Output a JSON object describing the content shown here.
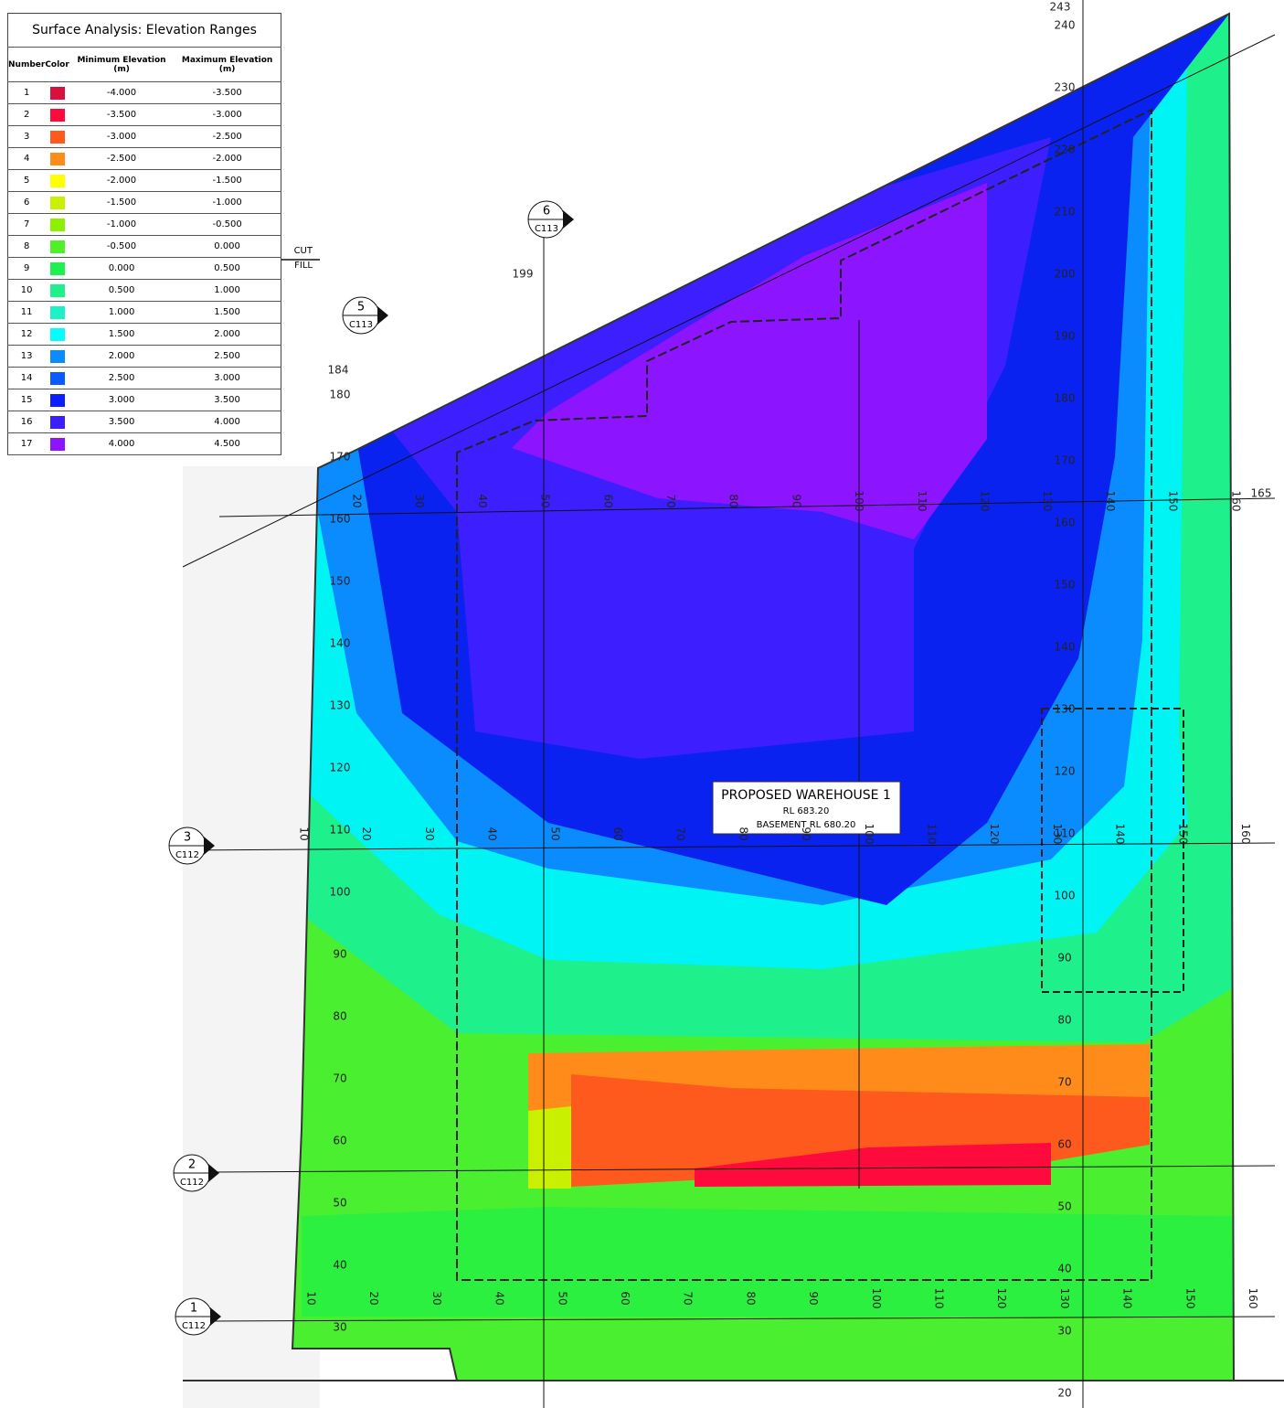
{
  "legend": {
    "title": "Surface Analysis: Elevation Ranges",
    "headers": [
      "Number",
      "Color",
      "Minimum Elevation (m)",
      "Maximum Elevation (m)"
    ],
    "rows": [
      {
        "number": "1",
        "color": "#d8103c",
        "min": "-4.000",
        "max": "-3.500"
      },
      {
        "number": "2",
        "color": "#ff0a3c",
        "min": "-3.500",
        "max": "-3.000"
      },
      {
        "number": "3",
        "color": "#ff5a1e",
        "min": "-3.000",
        "max": "-2.500"
      },
      {
        "number": "4",
        "color": "#ff8c1a",
        "min": "-2.500",
        "max": "-2.000"
      },
      {
        "number": "5",
        "color": "#ffff00",
        "min": "-2.000",
        "max": "-1.500"
      },
      {
        "number": "6",
        "color": "#c8f000",
        "min": "-1.500",
        "max": "-1.000"
      },
      {
        "number": "7",
        "color": "#8cf000",
        "min": "-1.000",
        "max": "-0.500"
      },
      {
        "number": "8",
        "color": "#50f028",
        "min": "-0.500",
        "max": "0.000"
      },
      {
        "number": "9",
        "color": "#1ef050",
        "min": "0.000",
        "max": "0.500"
      },
      {
        "number": "10",
        "color": "#1ef08c",
        "min": "0.500",
        "max": "1.000"
      },
      {
        "number": "11",
        "color": "#1ef0c8",
        "min": "1.000",
        "max": "1.500"
      },
      {
        "number": "12",
        "color": "#00ffff",
        "min": "1.500",
        "max": "2.000"
      },
      {
        "number": "13",
        "color": "#0a8cff",
        "min": "2.000",
        "max": "2.500"
      },
      {
        "number": "14",
        "color": "#0a5aff",
        "min": "2.500",
        "max": "3.000"
      },
      {
        "number": "15",
        "color": "#0a1eff",
        "min": "3.000",
        "max": "3.500"
      },
      {
        "number": "16",
        "color": "#3c1eff",
        "min": "3.500",
        "max": "4.000"
      },
      {
        "number": "17",
        "color": "#8c14ff",
        "min": "4.000",
        "max": "4.500"
      }
    ]
  },
  "cut_label": "CUT",
  "fill_label": "FILL",
  "warehouse": {
    "name": "PROPOSED WAREHOUSE 1",
    "rl": "RL 683.20",
    "basement": "BASEMENT RL 680.20"
  },
  "section_markers": [
    {
      "num": "6",
      "ref": "C113"
    },
    {
      "num": "5",
      "ref": "C113"
    },
    {
      "num": "3",
      "ref": "C112"
    },
    {
      "num": "2",
      "ref": "C112"
    },
    {
      "num": "1",
      "ref": "C112"
    }
  ],
  "other_labels": [
    "243",
    "199",
    "184",
    "165"
  ],
  "left_axis": [
    "180",
    "170",
    "160",
    "150",
    "140",
    "130",
    "120",
    "110",
    "100",
    "90",
    "80",
    "70",
    "60",
    "50",
    "40",
    "30"
  ],
  "right_axis": [
    "240",
    "230",
    "220",
    "210",
    "200",
    "190",
    "180",
    "170",
    "160",
    "150",
    "140",
    "130",
    "120",
    "110",
    "100",
    "90",
    "80",
    "70",
    "60",
    "50",
    "40",
    "30",
    "20"
  ],
  "top_axis": [
    "20",
    "30",
    "40",
    "50",
    "60",
    "70",
    "80",
    "90",
    "100",
    "110",
    "120",
    "130",
    "140",
    "150",
    "160"
  ],
  "mid_axis": [
    "10",
    "20",
    "30",
    "40",
    "50",
    "60",
    "70",
    "80",
    "90",
    "100",
    "110",
    "120",
    "130",
    "140",
    "150",
    "160"
  ],
  "bottom_axis": [
    "10",
    "20",
    "30",
    "40",
    "50",
    "60",
    "70",
    "80",
    "90",
    "100",
    "110",
    "120",
    "130",
    "140",
    "150",
    "160"
  ]
}
